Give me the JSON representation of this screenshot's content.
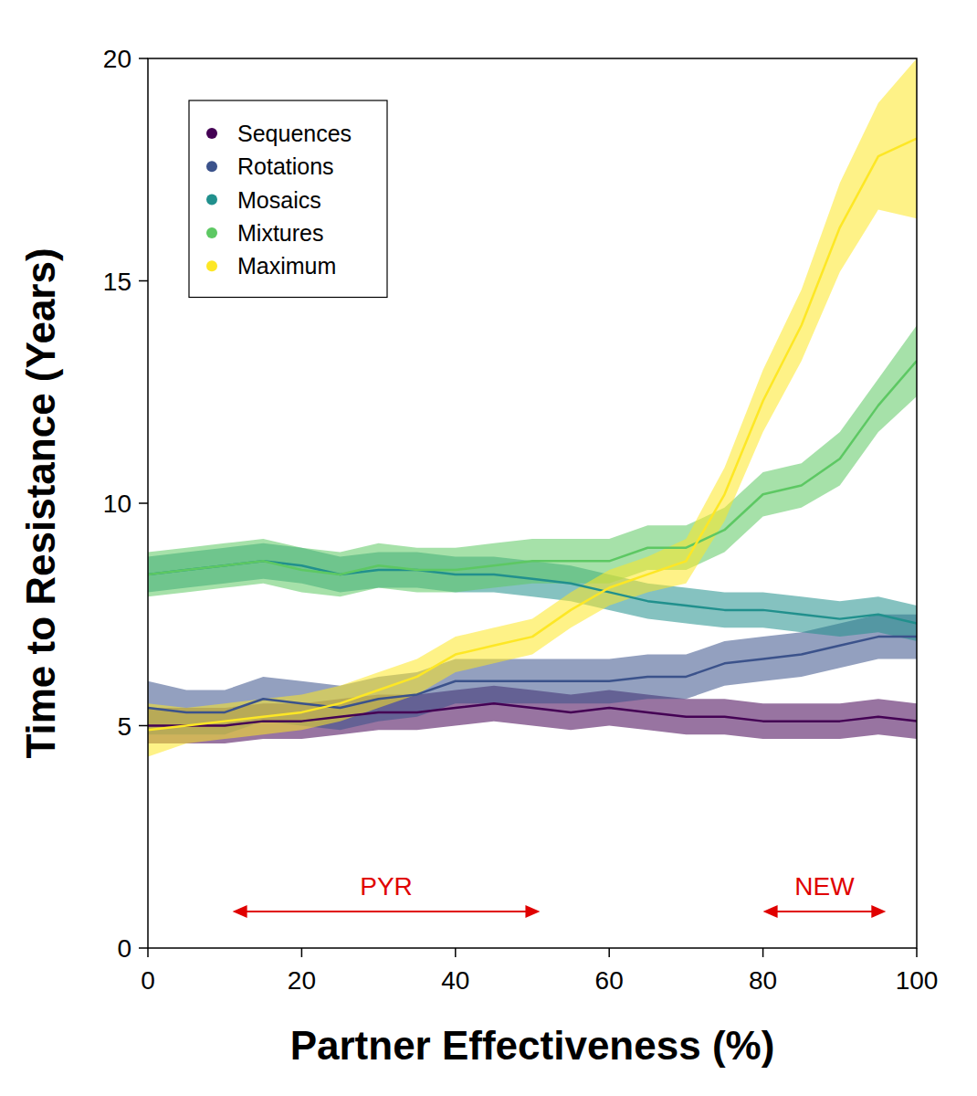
{
  "chart_data": {
    "type": "line",
    "x_label": "Partner Effectiveness (%)",
    "y_label": "Time to Resistance (Years)",
    "x": [
      0,
      5,
      10,
      15,
      20,
      25,
      30,
      35,
      40,
      45,
      50,
      55,
      60,
      65,
      70,
      75,
      80,
      85,
      90,
      95,
      100
    ],
    "xlim": [
      0,
      100
    ],
    "xticks": [
      0,
      20,
      40,
      60,
      80,
      100
    ],
    "ylim": [
      0,
      20
    ],
    "yticks": [
      0,
      5,
      10,
      15,
      20
    ],
    "grid": false,
    "legend": "upper left",
    "series": [
      {
        "name": "Sequences",
        "color": "#440154",
        "values": [
          5.0,
          5.0,
          5.0,
          5.1,
          5.1,
          5.2,
          5.3,
          5.3,
          5.4,
          5.5,
          5.4,
          5.3,
          5.4,
          5.3,
          5.2,
          5.2,
          5.1,
          5.1,
          5.1,
          5.2,
          5.1
        ],
        "lower": [
          4.6,
          4.6,
          4.6,
          4.7,
          4.7,
          4.8,
          4.9,
          4.9,
          5.0,
          5.1,
          5.0,
          4.9,
          5.0,
          4.9,
          4.8,
          4.8,
          4.7,
          4.7,
          4.7,
          4.8,
          4.7
        ],
        "upper": [
          5.4,
          5.4,
          5.4,
          5.5,
          5.5,
          5.6,
          5.7,
          5.7,
          5.8,
          5.9,
          5.8,
          5.7,
          5.8,
          5.7,
          5.6,
          5.6,
          5.5,
          5.5,
          5.5,
          5.6,
          5.5
        ]
      },
      {
        "name": "Rotations",
        "color": "#3b528b",
        "values": [
          5.4,
          5.3,
          5.3,
          5.6,
          5.5,
          5.4,
          5.6,
          5.7,
          6.0,
          6.0,
          6.0,
          6.0,
          6.0,
          6.1,
          6.1,
          6.4,
          6.5,
          6.6,
          6.8,
          7.0,
          7.0
        ],
        "lower": [
          4.8,
          4.8,
          4.8,
          5.1,
          5.0,
          4.9,
          5.1,
          5.2,
          5.5,
          5.5,
          5.5,
          5.5,
          5.5,
          5.6,
          5.6,
          5.9,
          6.0,
          6.1,
          6.3,
          6.5,
          6.5
        ],
        "upper": [
          6.0,
          5.8,
          5.8,
          6.1,
          6.0,
          5.9,
          6.1,
          6.2,
          6.5,
          6.5,
          6.5,
          6.5,
          6.5,
          6.6,
          6.6,
          6.9,
          7.0,
          7.1,
          7.3,
          7.5,
          7.5
        ]
      },
      {
        "name": "Mosaics",
        "color": "#21908d",
        "values": [
          8.4,
          8.5,
          8.6,
          8.7,
          8.6,
          8.4,
          8.5,
          8.5,
          8.4,
          8.4,
          8.3,
          8.2,
          8.0,
          7.8,
          7.7,
          7.6,
          7.6,
          7.5,
          7.4,
          7.5,
          7.3
        ],
        "lower": [
          8.0,
          8.1,
          8.2,
          8.3,
          8.2,
          8.0,
          8.1,
          8.1,
          8.0,
          8.0,
          7.9,
          7.8,
          7.6,
          7.4,
          7.3,
          7.2,
          7.2,
          7.1,
          7.0,
          7.1,
          6.9
        ],
        "upper": [
          8.8,
          8.9,
          9.0,
          9.1,
          9.0,
          8.8,
          8.9,
          8.9,
          8.8,
          8.8,
          8.7,
          8.6,
          8.4,
          8.2,
          8.1,
          8.0,
          8.0,
          7.9,
          7.8,
          7.9,
          7.7
        ]
      },
      {
        "name": "Mixtures",
        "color": "#5dc863",
        "values": [
          8.4,
          8.5,
          8.6,
          8.7,
          8.5,
          8.4,
          8.6,
          8.5,
          8.5,
          8.6,
          8.7,
          8.7,
          8.7,
          9.0,
          9.0,
          9.4,
          10.2,
          10.4,
          11.0,
          12.2,
          13.2
        ],
        "lower": [
          7.9,
          8.0,
          8.1,
          8.2,
          8.0,
          7.9,
          8.1,
          8.0,
          8.0,
          8.1,
          8.2,
          8.2,
          8.2,
          8.5,
          8.5,
          8.9,
          9.7,
          9.9,
          10.4,
          11.6,
          12.4
        ],
        "upper": [
          8.9,
          9.0,
          9.1,
          9.2,
          9.0,
          8.9,
          9.1,
          9.0,
          9.0,
          9.1,
          9.2,
          9.2,
          9.2,
          9.5,
          9.5,
          9.9,
          10.7,
          10.9,
          11.6,
          12.8,
          14.0
        ]
      },
      {
        "name": "Maximum",
        "color": "#fde725",
        "values": [
          4.9,
          5.0,
          5.1,
          5.2,
          5.3,
          5.5,
          5.8,
          6.1,
          6.6,
          6.8,
          7.0,
          7.6,
          8.1,
          8.4,
          8.7,
          10.2,
          12.3,
          14.0,
          16.2,
          17.8,
          18.2
        ],
        "lower": [
          4.3,
          4.6,
          4.7,
          4.8,
          4.9,
          5.1,
          5.4,
          5.7,
          6.2,
          6.4,
          6.6,
          7.2,
          7.7,
          8.0,
          8.2,
          9.6,
          11.6,
          13.2,
          15.2,
          16.6,
          16.4
        ],
        "upper": [
          5.5,
          5.4,
          5.5,
          5.6,
          5.7,
          5.9,
          6.2,
          6.5,
          7.0,
          7.2,
          7.4,
          8.0,
          8.5,
          8.8,
          9.2,
          10.8,
          13.0,
          14.8,
          17.2,
          19.0,
          20.0
        ]
      }
    ],
    "annotations": [
      {
        "text": "PYR",
        "x": [
          11,
          51
        ],
        "y": 0.82,
        "color": "#e00000"
      },
      {
        "text": "NEW",
        "x": [
          80,
          96
        ],
        "y": 0.82,
        "color": "#e00000"
      }
    ]
  }
}
